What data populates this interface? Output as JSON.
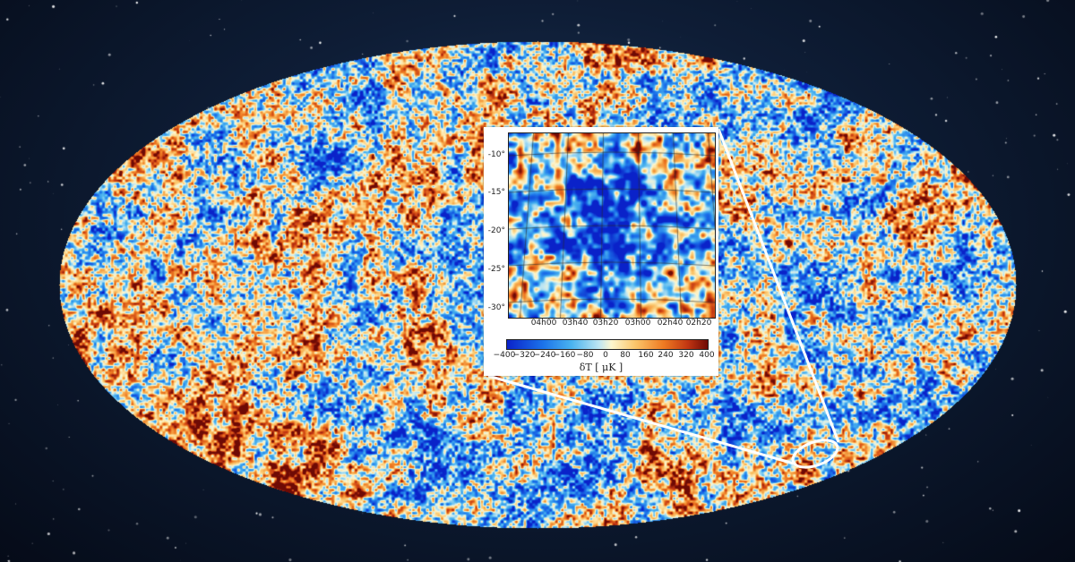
{
  "inset": {
    "dec_ticks": [
      "-10°",
      "-15°",
      "-20°",
      "-25°",
      "-30°"
    ],
    "ra_ticks": [
      "04h00",
      "03h40",
      "03h20",
      "03h00",
      "02h40",
      "02h20"
    ],
    "colorbar_ticks": [
      "−400",
      "−320",
      "−240",
      "−160",
      "−80",
      "0",
      "80",
      "160",
      "240",
      "320",
      "400"
    ],
    "colorbar_label": "δT [ μK ]",
    "colorbar_range": [
      -400,
      400
    ]
  },
  "colors": {
    "cold": "#1c73ea",
    "neutral": "#fdf7cf",
    "hot": "#ee7a22",
    "space": "#0e1d36"
  }
}
